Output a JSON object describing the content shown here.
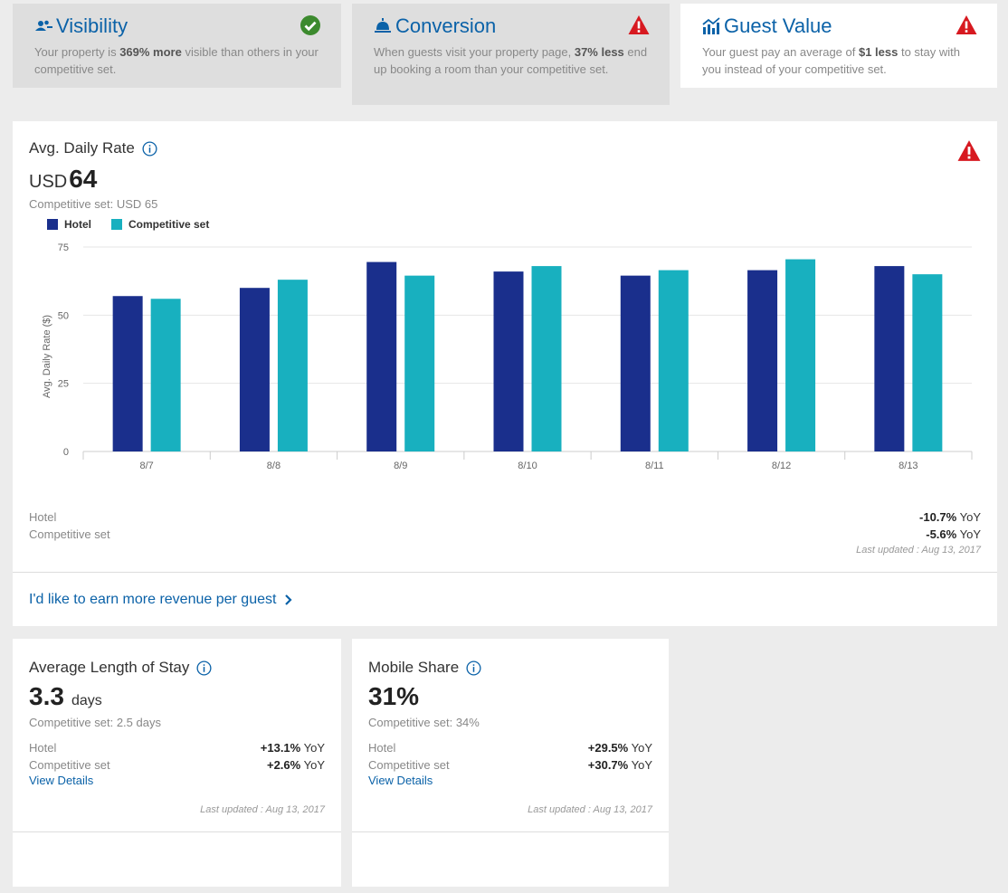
{
  "tabs": [
    {
      "title": "Visibility",
      "desc_pre": "Your property is ",
      "desc_bold": "369% more",
      "desc_post": " visible than others in your competitive set.",
      "status": "ok"
    },
    {
      "title": "Conversion",
      "desc_pre": "When guests visit your property page, ",
      "desc_bold": "37% less",
      "desc_post": " end up booking a room than your competitive set.",
      "status": "warning"
    },
    {
      "title": "Guest Value",
      "desc_pre": "Your guest pay an average of ",
      "desc_bold": "$1 less",
      "desc_post": " to stay with you instead of your competitive set.",
      "status": "warning"
    }
  ],
  "adr": {
    "title": "Avg. Daily Rate",
    "currency": "USD",
    "value": "64",
    "comp_text": "Competitive set: USD 65",
    "hotel_label": "Hotel",
    "comp_label": "Competitive set",
    "hotel_yoy": "-10.7%",
    "comp_yoy": "-5.6%",
    "yoy_suffix": "YoY",
    "updated": "Last updated : Aug 13, 2017",
    "cta": "I'd like to earn more revenue per guest"
  },
  "chart_data": {
    "type": "bar",
    "categories": [
      "8/7",
      "8/8",
      "8/9",
      "8/10",
      "8/11",
      "8/12",
      "8/13"
    ],
    "series": [
      {
        "name": "Hotel",
        "values": [
          57,
          60,
          69.5,
          66,
          64.5,
          66.5,
          68
        ],
        "color": "#1a2f8c"
      },
      {
        "name": "Competitive set",
        "values": [
          56,
          63,
          64.5,
          68,
          66.5,
          70.5,
          65
        ],
        "color": "#18b0bf"
      }
    ],
    "ylabel": "Avg. Daily Rate ($)",
    "ylim": [
      0,
      75
    ],
    "yticks": [
      0,
      25,
      50,
      75
    ],
    "grid": true,
    "legend": "top-left"
  },
  "alos": {
    "title": "Average Length of Stay",
    "value": "3.3",
    "unit": "days",
    "comp_text": "Competitive set: 2.5 days",
    "hotel_label": "Hotel",
    "comp_label": "Competitive set",
    "hotel_yoy": "+13.1%",
    "comp_yoy": "+2.6%",
    "yoy_suffix": "YoY",
    "details": "View Details",
    "updated": "Last updated : Aug 13, 2017"
  },
  "mobile": {
    "title": "Mobile Share",
    "value": "31%",
    "comp_text": "Competitive set: 34%",
    "hotel_label": "Hotel",
    "comp_label": "Competitive set",
    "hotel_yoy": "+29.5%",
    "comp_yoy": "+30.7%",
    "yoy_suffix": "YoY",
    "details": "View Details",
    "updated": "Last updated : Aug 13, 2017"
  },
  "colors": {
    "accent": "#0b62a8",
    "ok": "#3c8a2e",
    "warning": "#d71920",
    "hotel": "#1a2f8c",
    "comp": "#18b0bf"
  },
  "icons": [
    "users-icon",
    "bell-icon",
    "chart-icon",
    "check-circle-icon",
    "warning-icon",
    "info-icon",
    "chevron-right-icon"
  ]
}
